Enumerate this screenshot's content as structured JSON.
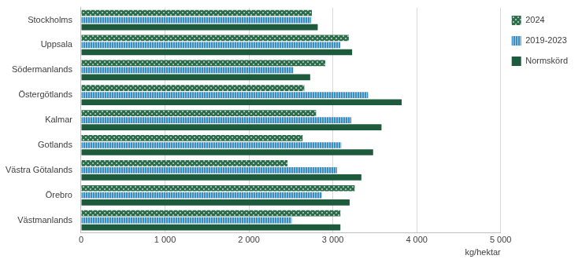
{
  "chart_data": {
    "type": "bar",
    "orientation": "horizontal",
    "categories": [
      "Stockholms",
      "Uppsala",
      "Södermanlands",
      "Östergötlands",
      "Kalmar",
      "Gotlands",
      "Västra Götalands",
      "Örebro",
      "Västmanlands"
    ],
    "series": [
      {
        "name": "2024",
        "color": "#2f6e4c",
        "values": [
          2750,
          3190,
          2910,
          2660,
          2800,
          2640,
          2460,
          3260,
          3090
        ]
      },
      {
        "name": "2019-2023",
        "color": "#3a8fc0",
        "values": [
          2740,
          3090,
          2530,
          3420,
          3220,
          3100,
          3050,
          2870,
          2510
        ]
      },
      {
        "name": "Normskörd",
        "color": "#1e5a3c",
        "values": [
          2820,
          3230,
          2730,
          3820,
          3580,
          3480,
          3340,
          3200,
          3090
        ]
      }
    ],
    "x_label": "kg/hektar",
    "xlim": [
      0,
      5000
    ],
    "xticks": [
      0,
      {
        "value": 1000,
        "label": "1 000"
      },
      {
        "value": 2000,
        "label": "2 000"
      },
      {
        "value": 3000,
        "label": "3 000"
      },
      {
        "value": 4000,
        "label": "4 000"
      },
      {
        "value": 5000,
        "label": "5 000"
      }
    ],
    "grid": true,
    "legend": "upper right"
  }
}
